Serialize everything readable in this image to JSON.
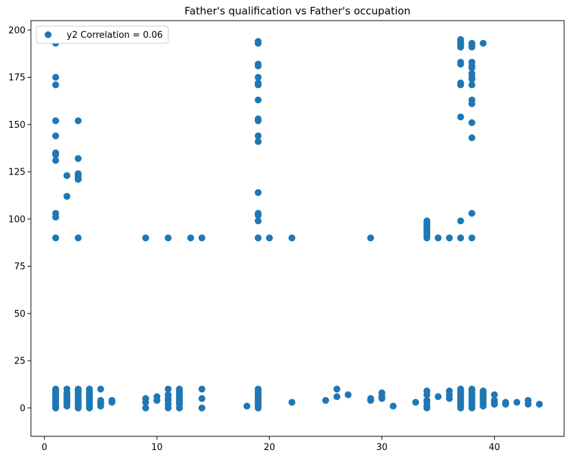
{
  "chart_data": {
    "type": "scatter",
    "title": "Father's qualification vs Father's occupation",
    "xlabel": "",
    "ylabel": "",
    "xlim": [
      -1.2,
      46.2
    ],
    "ylim": [
      -15,
      205
    ],
    "xticks": [
      0,
      10,
      20,
      30,
      40
    ],
    "yticks": [
      0,
      25,
      50,
      75,
      100,
      125,
      150,
      175,
      200
    ],
    "grid": false,
    "legend_position": "top-left",
    "series": [
      {
        "name": "y2 Correlation = 0.06",
        "color": "#1f77b4",
        "points": [
          [
            1,
            0
          ],
          [
            1,
            1
          ],
          [
            1,
            2
          ],
          [
            1,
            3
          ],
          [
            1,
            4
          ],
          [
            1,
            5
          ],
          [
            1,
            6
          ],
          [
            1,
            7
          ],
          [
            1,
            8
          ],
          [
            1,
            9
          ],
          [
            1,
            10
          ],
          [
            1,
            90
          ],
          [
            1,
            101
          ],
          [
            1,
            103
          ],
          [
            1,
            131
          ],
          [
            1,
            134
          ],
          [
            1,
            135
          ],
          [
            1,
            144
          ],
          [
            1,
            152
          ],
          [
            1,
            171
          ],
          [
            1,
            175
          ],
          [
            1,
            193
          ],
          [
            2,
            1
          ],
          [
            2,
            2
          ],
          [
            2,
            3
          ],
          [
            2,
            4
          ],
          [
            2,
            5
          ],
          [
            2,
            6
          ],
          [
            2,
            7
          ],
          [
            2,
            8
          ],
          [
            2,
            10
          ],
          [
            2,
            112
          ],
          [
            2,
            123
          ],
          [
            3,
            0
          ],
          [
            3,
            1
          ],
          [
            3,
            2
          ],
          [
            3,
            3
          ],
          [
            3,
            4
          ],
          [
            3,
            5
          ],
          [
            3,
            6
          ],
          [
            3,
            7
          ],
          [
            3,
            8
          ],
          [
            3,
            9
          ],
          [
            3,
            10
          ],
          [
            3,
            90
          ],
          [
            3,
            121
          ],
          [
            3,
            122
          ],
          [
            3,
            123
          ],
          [
            3,
            124
          ],
          [
            3,
            132
          ],
          [
            3,
            152
          ],
          [
            4,
            0
          ],
          [
            4,
            1
          ],
          [
            4,
            2
          ],
          [
            4,
            3
          ],
          [
            4,
            4
          ],
          [
            4,
            5
          ],
          [
            4,
            6
          ],
          [
            4,
            7
          ],
          [
            4,
            8
          ],
          [
            4,
            9
          ],
          [
            4,
            10
          ],
          [
            5,
            1
          ],
          [
            5,
            2
          ],
          [
            5,
            3
          ],
          [
            5,
            4
          ],
          [
            5,
            10
          ],
          [
            6,
            3
          ],
          [
            6,
            4
          ],
          [
            9,
            0
          ],
          [
            9,
            3
          ],
          [
            9,
            5
          ],
          [
            9,
            90
          ],
          [
            10,
            4
          ],
          [
            10,
            6
          ],
          [
            11,
            0
          ],
          [
            11,
            2
          ],
          [
            11,
            4
          ],
          [
            11,
            5
          ],
          [
            11,
            7
          ],
          [
            11,
            10
          ],
          [
            11,
            90
          ],
          [
            12,
            0
          ],
          [
            12,
            2
          ],
          [
            12,
            3
          ],
          [
            12,
            4
          ],
          [
            12,
            5
          ],
          [
            12,
            6
          ],
          [
            12,
            7
          ],
          [
            12,
            8
          ],
          [
            12,
            9
          ],
          [
            12,
            10
          ],
          [
            13,
            90
          ],
          [
            14,
            0
          ],
          [
            14,
            5
          ],
          [
            14,
            10
          ],
          [
            14,
            90
          ],
          [
            18,
            1
          ],
          [
            19,
            0
          ],
          [
            19,
            1
          ],
          [
            19,
            2
          ],
          [
            19,
            3
          ],
          [
            19,
            4
          ],
          [
            19,
            5
          ],
          [
            19,
            6
          ],
          [
            19,
            7
          ],
          [
            19,
            8
          ],
          [
            19,
            9
          ],
          [
            19,
            10
          ],
          [
            19,
            90
          ],
          [
            19,
            99
          ],
          [
            19,
            102
          ],
          [
            19,
            103
          ],
          [
            19,
            114
          ],
          [
            19,
            141
          ],
          [
            19,
            144
          ],
          [
            19,
            152
          ],
          [
            19,
            153
          ],
          [
            19,
            163
          ],
          [
            19,
            171
          ],
          [
            19,
            172
          ],
          [
            19,
            175
          ],
          [
            19,
            181
          ],
          [
            19,
            182
          ],
          [
            19,
            193
          ],
          [
            19,
            194
          ],
          [
            20,
            90
          ],
          [
            22,
            3
          ],
          [
            22,
            90
          ],
          [
            25,
            4
          ],
          [
            26,
            6
          ],
          [
            26,
            10
          ],
          [
            27,
            7
          ],
          [
            29,
            4
          ],
          [
            29,
            5
          ],
          [
            29,
            90
          ],
          [
            30,
            5
          ],
          [
            30,
            6
          ],
          [
            30,
            8
          ],
          [
            31,
            1
          ],
          [
            33,
            3
          ],
          [
            34,
            0
          ],
          [
            34,
            1
          ],
          [
            34,
            3
          ],
          [
            34,
            4
          ],
          [
            34,
            7
          ],
          [
            34,
            9
          ],
          [
            34,
            90
          ],
          [
            34,
            91
          ],
          [
            34,
            92
          ],
          [
            34,
            93
          ],
          [
            34,
            94
          ],
          [
            34,
            95
          ],
          [
            34,
            96
          ],
          [
            34,
            97
          ],
          [
            34,
            98
          ],
          [
            34,
            99
          ],
          [
            35,
            6
          ],
          [
            35,
            90
          ],
          [
            36,
            5
          ],
          [
            36,
            7
          ],
          [
            36,
            9
          ],
          [
            36,
            90
          ],
          [
            37,
            0
          ],
          [
            37,
            1
          ],
          [
            37,
            2
          ],
          [
            37,
            3
          ],
          [
            37,
            4
          ],
          [
            37,
            5
          ],
          [
            37,
            6
          ],
          [
            37,
            7
          ],
          [
            37,
            8
          ],
          [
            37,
            9
          ],
          [
            37,
            10
          ],
          [
            37,
            90
          ],
          [
            37,
            99
          ],
          [
            37,
            154
          ],
          [
            37,
            171
          ],
          [
            37,
            172
          ],
          [
            37,
            182
          ],
          [
            37,
            183
          ],
          [
            37,
            191
          ],
          [
            37,
            192
          ],
          [
            37,
            193
          ],
          [
            37,
            194
          ],
          [
            37,
            195
          ],
          [
            38,
            0
          ],
          [
            38,
            1
          ],
          [
            38,
            2
          ],
          [
            38,
            3
          ],
          [
            38,
            4
          ],
          [
            38,
            5
          ],
          [
            38,
            6
          ],
          [
            38,
            7
          ],
          [
            38,
            8
          ],
          [
            38,
            9
          ],
          [
            38,
            10
          ],
          [
            38,
            90
          ],
          [
            38,
            103
          ],
          [
            38,
            143
          ],
          [
            38,
            151
          ],
          [
            38,
            161
          ],
          [
            38,
            163
          ],
          [
            38,
            171
          ],
          [
            38,
            174
          ],
          [
            38,
            175
          ],
          [
            38,
            177
          ],
          [
            38,
            180
          ],
          [
            38,
            181
          ],
          [
            38,
            183
          ],
          [
            38,
            191
          ],
          [
            38,
            192
          ],
          [
            38,
            193
          ],
          [
            39,
            1
          ],
          [
            39,
            2
          ],
          [
            39,
            3
          ],
          [
            39,
            4
          ],
          [
            39,
            5
          ],
          [
            39,
            6
          ],
          [
            39,
            7
          ],
          [
            39,
            8
          ],
          [
            39,
            9
          ],
          [
            39,
            193
          ],
          [
            40,
            2
          ],
          [
            40,
            3
          ],
          [
            40,
            4
          ],
          [
            40,
            7
          ],
          [
            41,
            2
          ],
          [
            41,
            3
          ],
          [
            42,
            3
          ],
          [
            43,
            2
          ],
          [
            43,
            4
          ],
          [
            44,
            2
          ]
        ]
      }
    ]
  }
}
